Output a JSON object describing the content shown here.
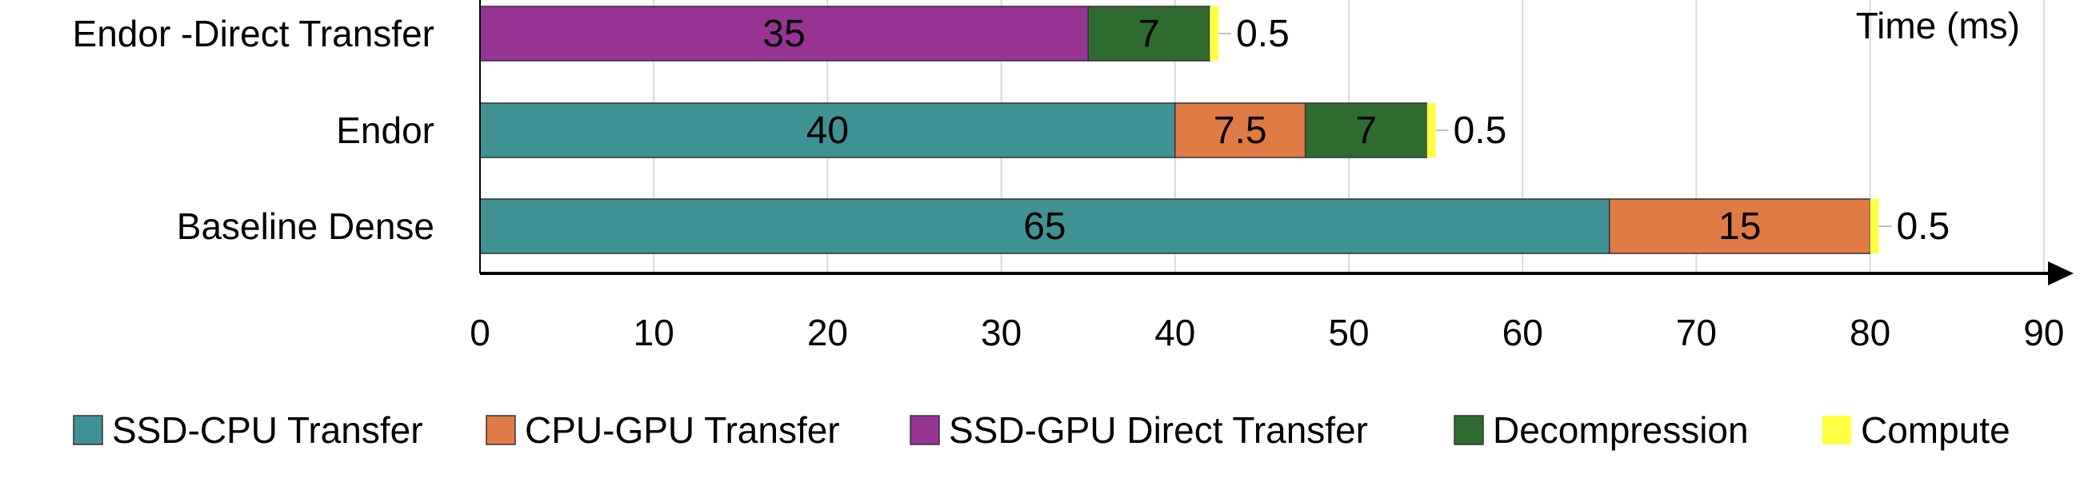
{
  "chart_data": {
    "type": "bar",
    "orientation": "horizontal",
    "stacked": true,
    "title": "",
    "xlabel": "Time (ms)",
    "ylabel": "",
    "xlim": [
      0,
      90
    ],
    "x_ticks": [
      0,
      10,
      20,
      30,
      40,
      50,
      60,
      70,
      80,
      90
    ],
    "grid": "vertical",
    "legend_position": "bottom",
    "categories": [
      "Endor -Direct Transfer",
      "Endor",
      "Baseline Dense"
    ],
    "series": [
      {
        "name": "SSD-CPU Transfer",
        "color": "#3f9194",
        "values": [
          0,
          40,
          65
        ]
      },
      {
        "name": "CPU-GPU Transfer",
        "color": "#e07b45",
        "values": [
          0,
          7.5,
          15
        ]
      },
      {
        "name": "SSD-GPU Direct Transfer",
        "color": "#973494",
        "values": [
          35,
          0,
          0
        ]
      },
      {
        "name": "Decompression",
        "color": "#2f6b2f",
        "values": [
          7,
          7,
          0
        ]
      },
      {
        "name": "Compute",
        "color": "#ffff44",
        "values": [
          0.5,
          0.5,
          0.5
        ]
      }
    ]
  }
}
